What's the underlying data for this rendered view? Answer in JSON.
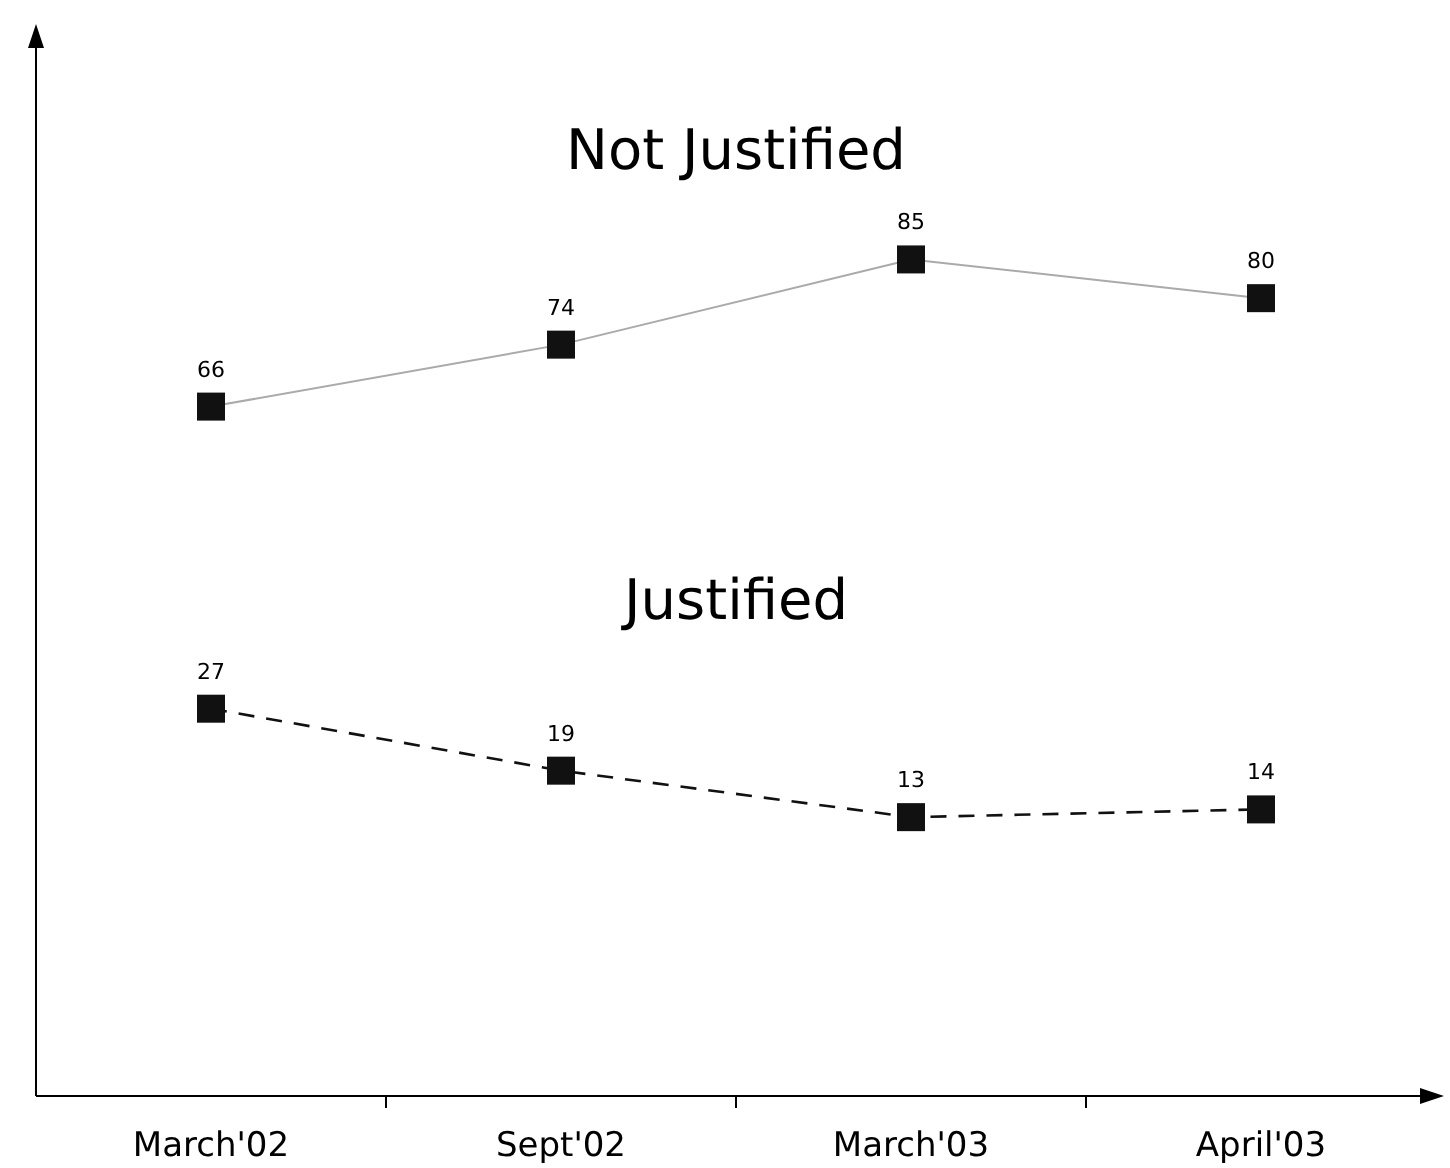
{
  "chart_data": {
    "type": "line",
    "categories": [
      "March'02",
      "Sept'02",
      "March'03",
      "April'03"
    ],
    "series": [
      {
        "name": "Not Justified",
        "color": "#111111",
        "line_style": "solid",
        "values": [
          66,
          74,
          85,
          80
        ]
      },
      {
        "name": "Justified",
        "color": "#111111",
        "line_style": "dashed",
        "values": [
          27,
          19,
          13,
          14
        ]
      }
    ],
    "tick_labels": "x",
    "marker": "square",
    "data_labels": true
  }
}
